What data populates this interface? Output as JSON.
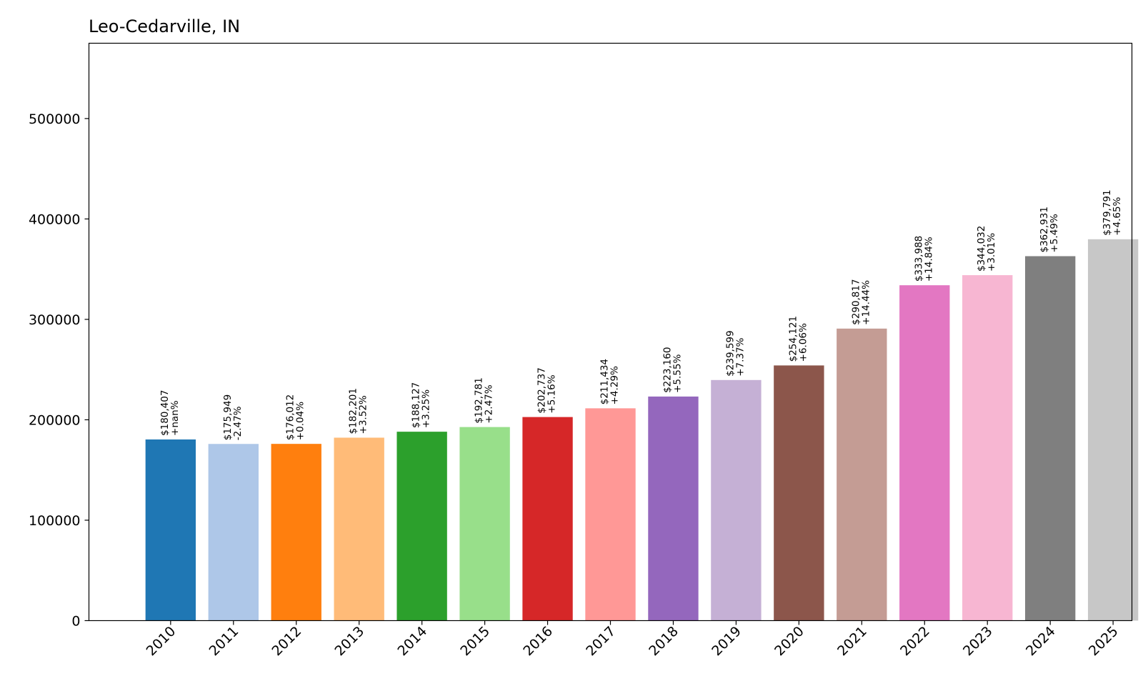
{
  "chart_data": {
    "type": "bar",
    "title": "Leo-Cedarville, IN",
    "categories": [
      "2010",
      "2011",
      "2012",
      "2013",
      "2014",
      "2015",
      "2016",
      "2017",
      "2018",
      "2019",
      "2020",
      "2021",
      "2022",
      "2023",
      "2024",
      "2025"
    ],
    "values": [
      180407,
      175949,
      176012,
      182201,
      188127,
      192781,
      202737,
      211434,
      223160,
      239599,
      254121,
      290817,
      333988,
      344032,
      362931,
      379791
    ],
    "value_labels": [
      "$180,407",
      "$175,949",
      "$176,012",
      "$182,201",
      "$188,127",
      "$192,781",
      "$202,737",
      "$211,434",
      "$223,160",
      "$239,599",
      "$254,121",
      "$290,817",
      "$333,988",
      "$344,032",
      "$362,931",
      "$379,791"
    ],
    "change_labels": [
      "+nan%",
      "-2.47%",
      "+0.04%",
      "+3.52%",
      "+3.25%",
      "+2.47%",
      "+5.16%",
      "+4.29%",
      "+5.55%",
      "+7.37%",
      "+6.06%",
      "+14.44%",
      "+14.84%",
      "+3.01%",
      "+5.49%",
      "+4.65%"
    ],
    "colors": [
      "#1f77b4",
      "#aec7e8",
      "#ff7f0e",
      "#ffbb78",
      "#2ca02c",
      "#98df8a",
      "#d62728",
      "#ff9896",
      "#9467bd",
      "#c5b0d5",
      "#8c564b",
      "#c49c94",
      "#e377c2",
      "#f7b6d2",
      "#7f7f7f",
      "#c7c7c7"
    ],
    "ylim": [
      0,
      575000
    ],
    "yticks": [
      0,
      100000,
      200000,
      300000,
      400000,
      500000
    ],
    "ytick_labels": [
      "0",
      "100000",
      "200000",
      "300000",
      "400000",
      "500000"
    ],
    "xlabel": "",
    "ylabel": "",
    "grid": false,
    "legend": "none"
  }
}
